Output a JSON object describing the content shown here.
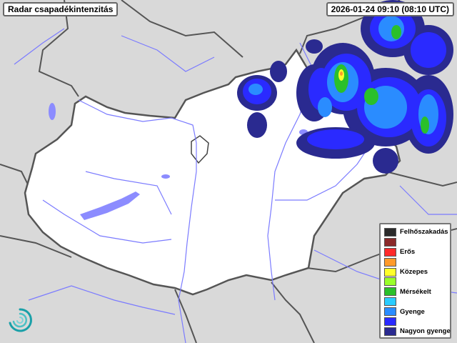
{
  "header": {
    "title": "Radar csapadékintenzitás",
    "timestamp": "2026-01-24 09:10 (08:10 UTC)"
  },
  "legend": {
    "items": [
      {
        "label": "Felhőszakadás",
        "color": "#2b2b2b"
      },
      {
        "label": "",
        "color": "#8b2a2a"
      },
      {
        "label": "Erős",
        "color": "#ff2a2a"
      },
      {
        "label": "",
        "color": "#ff9a2a"
      },
      {
        "label": "Közepes",
        "color": "#ffff2a"
      },
      {
        "label": "",
        "color": "#9aff2a"
      },
      {
        "label": "Mérsékelt",
        "color": "#2ac02a"
      },
      {
        "label": "",
        "color": "#2accff"
      },
      {
        "label": "Gyenge",
        "color": "#2a8cff"
      },
      {
        "label": "",
        "color": "#2a2aff"
      },
      {
        "label": "Nagyon gyenge",
        "color": "#2a2a90"
      }
    ]
  },
  "map": {
    "background_color": "#d9d9d9",
    "country_fill": "#ffffff",
    "river_color": "#7b7bff",
    "border_color": "#555555"
  },
  "logo": {
    "icon": "swirl-logo-icon",
    "color": "#1aa0a8"
  }
}
